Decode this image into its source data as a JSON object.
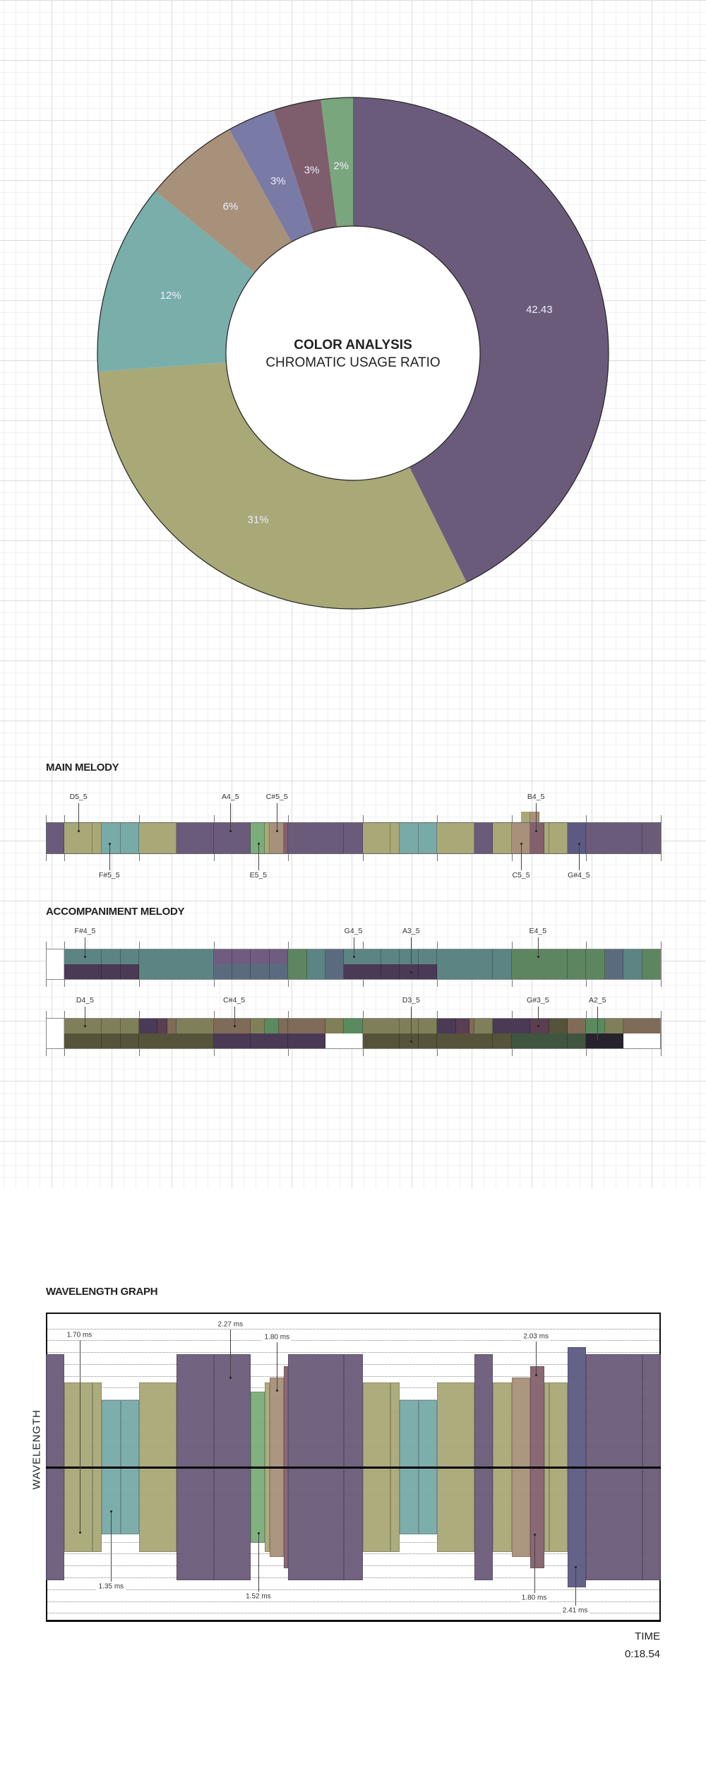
{
  "chart_data": [
    {
      "type": "pie",
      "style": "donut",
      "title": "COLOR ANALYSIS",
      "subtitle": "CHROMATIC USAGE RATIO",
      "slices": [
        {
          "label": "42.43",
          "value": 42.43,
          "color": "#6b5b7b"
        },
        {
          "label": "31%",
          "value": 31,
          "color": "#a9a877"
        },
        {
          "label": "12%",
          "value": 12,
          "color": "#79aeab"
        },
        {
          "label": "6%",
          "value": 6,
          "color": "#a8917a"
        },
        {
          "label": "3%",
          "value": 3,
          "color": "#7a7aa6"
        },
        {
          "label": "3%",
          "value": 3,
          "color": "#7e5d6c"
        },
        {
          "label": "2%",
          "value": 2,
          "color": "#79a67c"
        }
      ]
    },
    {
      "type": "bar",
      "style": "timeline",
      "title": "MAIN MELODY",
      "total_units": 33,
      "ticks": [
        0,
        1,
        5,
        9,
        13,
        17,
        21,
        25,
        29,
        33
      ],
      "palette": {
        "P": "#6b5b7b",
        "O": "#a9a877",
        "T": "#78aaa8",
        "G": "#7bad7b",
        "N": "#a8917a",
        "M": "#84606d",
        "B": "#5c5a82"
      },
      "segments": [
        [
          0,
          1,
          "P"
        ],
        [
          1,
          2.5,
          "O"
        ],
        [
          2.5,
          3,
          "O"
        ],
        [
          3,
          4,
          "T"
        ],
        [
          4,
          5,
          "T"
        ],
        [
          5,
          7,
          "O"
        ],
        [
          7,
          9,
          "P"
        ],
        [
          9,
          11,
          "P"
        ],
        [
          11,
          11.75,
          "G"
        ],
        [
          11.75,
          12,
          "O"
        ],
        [
          12,
          12.75,
          "N"
        ],
        [
          12.75,
          13,
          "M"
        ],
        [
          13,
          16,
          "P"
        ],
        [
          16,
          17,
          "P"
        ],
        [
          17,
          18.5,
          "O"
        ],
        [
          18.5,
          19,
          "O"
        ],
        [
          19,
          20,
          "T"
        ],
        [
          20,
          21,
          "T"
        ],
        [
          21,
          23,
          "O"
        ],
        [
          23,
          24,
          "P"
        ],
        [
          24,
          25,
          "O"
        ],
        [
          25,
          26,
          "N"
        ],
        [
          26,
          26.75,
          "M"
        ],
        [
          26.75,
          27,
          "O"
        ],
        [
          27,
          28,
          "O"
        ],
        [
          28,
          29,
          "B"
        ],
        [
          29,
          32,
          "P"
        ],
        [
          32,
          33,
          "P"
        ]
      ],
      "raised": [
        [
          25.5,
          26,
          "O"
        ],
        [
          26,
          26.5,
          "N"
        ]
      ],
      "labels": [
        {
          "text": "D5_5",
          "at": 1.75,
          "side": "top"
        },
        {
          "text": "F#5_5",
          "at": 3.4,
          "side": "bottom"
        },
        {
          "text": "A4_5",
          "at": 9.9,
          "side": "top"
        },
        {
          "text": "E5_5",
          "at": 11.4,
          "side": "bottom"
        },
        {
          "text": "C#5_5",
          "at": 12.4,
          "side": "top"
        },
        {
          "text": "B4_5",
          "at": 26.3,
          "side": "top"
        },
        {
          "text": "C5_5",
          "at": 25.5,
          "side": "bottom"
        },
        {
          "text": "G#4_5",
          "at": 28.6,
          "side": "bottom"
        }
      ]
    },
    {
      "type": "bar",
      "style": "timeline",
      "title": "ACCOMPANIMENT MELODY",
      "total_units": 33,
      "ticks": [
        0,
        1,
        5,
        9,
        13,
        17,
        21,
        25,
        29,
        33
      ],
      "palette": {
        "W": "#ffffff",
        "tl": "#5b8482",
        "dp": "#4a3a56",
        "pu": "#705c80",
        "sl": "#5b6b7f",
        "gr": "#5c8560",
        "ol": "#7f7f5a",
        "dol": "#555339",
        "br": "#7f6b57",
        "dm": "#5a3f50",
        "grn": "#5a8a5e",
        "dg": "#3f5540",
        "bk": "#27222d"
      },
      "tracks": [
        {
          "top": [
            [
              0,
              1,
              "W"
            ],
            [
              1,
              3,
              "tl"
            ],
            [
              3,
              4,
              "tl"
            ],
            [
              4,
              5,
              "tl"
            ],
            [
              5,
              9,
              "tl"
            ],
            [
              9,
              10,
              "pu"
            ],
            [
              10,
              11,
              "pu"
            ],
            [
              11,
              12,
              "pu"
            ],
            [
              12,
              13,
              "pu"
            ],
            [
              13,
              14,
              "gr"
            ],
            [
              14,
              15,
              "tl"
            ],
            [
              15,
              16,
              "sl"
            ],
            [
              16,
              18,
              "tl"
            ],
            [
              18,
              19,
              "tl"
            ],
            [
              19,
              20,
              "tl"
            ],
            [
              20,
              21,
              "tl"
            ],
            [
              21,
              24,
              "tl"
            ],
            [
              24,
              25,
              "tl"
            ],
            [
              25,
              28,
              "gr"
            ],
            [
              28,
              29,
              "gr"
            ],
            [
              29,
              30,
              "gr"
            ],
            [
              30,
              31,
              "sl"
            ],
            [
              31,
              32,
              "tl"
            ],
            [
              32,
              33,
              "gr"
            ]
          ],
          "bottom": [
            [
              0,
              1,
              "W"
            ],
            [
              1,
              3,
              "dp"
            ],
            [
              3,
              4,
              "dp"
            ],
            [
              4,
              5,
              "dp"
            ],
            [
              5,
              9,
              "tl"
            ],
            [
              9,
              10,
              "sl"
            ],
            [
              10,
              11,
              "sl"
            ],
            [
              11,
              12,
              "sl"
            ],
            [
              12,
              13,
              "sl"
            ],
            [
              13,
              14,
              "gr"
            ],
            [
              14,
              15,
              "tl"
            ],
            [
              15,
              16,
              "sl"
            ],
            [
              16,
              18,
              "dp"
            ],
            [
              18,
              19,
              "dp"
            ],
            [
              19,
              20,
              "dp"
            ],
            [
              20,
              21,
              "dp"
            ],
            [
              21,
              24,
              "tl"
            ],
            [
              24,
              25,
              "tl"
            ],
            [
              25,
              28,
              "gr"
            ],
            [
              28,
              29,
              "gr"
            ],
            [
              29,
              30,
              "gr"
            ],
            [
              30,
              31,
              "sl"
            ],
            [
              31,
              32,
              "tl"
            ],
            [
              32,
              33,
              "gr"
            ]
          ],
          "labels": [
            {
              "text": "F#4_5",
              "at": 2.1
            },
            {
              "text": "G4_5",
              "at": 16.5
            },
            {
              "text": "A3_5",
              "at": 19.6,
              "dot": "bottom"
            },
            {
              "text": "E4_5",
              "at": 26.4
            }
          ]
        },
        {
          "top": [
            [
              0,
              1,
              "W"
            ],
            [
              1,
              3,
              "ol"
            ],
            [
              3,
              4,
              "ol"
            ],
            [
              4,
              5,
              "ol"
            ],
            [
              5,
              6,
              "dp"
            ],
            [
              6,
              6.5,
              "dm"
            ],
            [
              6.5,
              7,
              "br"
            ],
            [
              7,
              9,
              "ol"
            ],
            [
              9,
              11,
              "br"
            ],
            [
              11,
              11.75,
              "ol"
            ],
            [
              11.75,
              12.5,
              "grn"
            ],
            [
              12.5,
              13,
              "br"
            ],
            [
              13,
              15,
              "br"
            ],
            [
              15,
              16,
              "ol"
            ],
            [
              16,
              17,
              "grn"
            ],
            [
              17,
              19,
              "ol"
            ],
            [
              19,
              20,
              "ol"
            ],
            [
              20,
              21,
              "ol"
            ],
            [
              21,
              22,
              "dp"
            ],
            [
              22,
              22.75,
              "dm"
            ],
            [
              22.75,
              23,
              "br"
            ],
            [
              23,
              24,
              "ol"
            ],
            [
              24,
              26,
              "dp"
            ],
            [
              26,
              27,
              "dm"
            ],
            [
              27,
              28,
              "dol"
            ],
            [
              28,
              29,
              "br"
            ],
            [
              29,
              30,
              "grn"
            ],
            [
              30,
              31,
              "ol"
            ],
            [
              31,
              33,
              "br"
            ]
          ],
          "bottom": [
            [
              0,
              1,
              "W"
            ],
            [
              1,
              3,
              "dol"
            ],
            [
              3,
              4,
              "dol"
            ],
            [
              4,
              5,
              "dol"
            ],
            [
              5,
              9,
              "dol"
            ],
            [
              9,
              11,
              "dp"
            ],
            [
              11,
              13,
              "dp"
            ],
            [
              13,
              15,
              "dp"
            ],
            [
              15,
              17,
              "W"
            ],
            [
              17,
              19,
              "dol"
            ],
            [
              19,
              20,
              "dol"
            ],
            [
              20,
              21,
              "dol"
            ],
            [
              21,
              24,
              "dol"
            ],
            [
              24,
              25,
              "dol"
            ],
            [
              25,
              28,
              "dg"
            ],
            [
              28,
              29,
              "dg"
            ],
            [
              29,
              31,
              "bk"
            ],
            [
              31,
              33,
              "W"
            ]
          ],
          "labels": [
            {
              "text": "D4_5",
              "at": 2.1
            },
            {
              "text": "C#4_5",
              "at": 10.1
            },
            {
              "text": "D3_5",
              "at": 19.6,
              "dot": "bottom"
            },
            {
              "text": "G#3_5",
              "at": 26.4
            },
            {
              "text": "A2_5",
              "at": 29.6,
              "dot": "bottom"
            }
          ]
        }
      ]
    },
    {
      "type": "bar",
      "style": "symmetric-wave",
      "title": "WAVELENGTH GRAPH",
      "ylabel": "WAVELENGTH",
      "xlabel": "TIME",
      "time_readout": "0:18.54",
      "ylim_ms": [
        -3.1,
        3.1
      ],
      "amplitude_ms": {
        "P": 2.27,
        "O": 1.7,
        "T": 1.35,
        "G": 1.52,
        "N": 1.8,
        "M": 2.03,
        "B": 2.41
      },
      "annotations": [
        {
          "text": "1.70 ms",
          "at": 1.8,
          "level": 2.64,
          "dot": -1.3
        },
        {
          "text": "2.27 ms",
          "at": 9.9,
          "level": 2.86,
          "dot": 1.8
        },
        {
          "text": "1.80 ms",
          "at": 12.4,
          "level": 2.61,
          "dot": 1.55
        },
        {
          "text": "2.03 ms",
          "at": 26.3,
          "level": 2.62,
          "dot": 1.85
        },
        {
          "text": "1.35 ms",
          "at": 3.5,
          "level": -2.39,
          "dot": -0.88
        },
        {
          "text": "1.52 ms",
          "at": 11.4,
          "level": -2.59,
          "dot": -1.32
        },
        {
          "text": "1.80 ms",
          "at": 26.2,
          "level": -2.62,
          "dot": -1.35
        },
        {
          "text": "2.41 ms",
          "at": 28.4,
          "level": -2.87,
          "dot": -2.0
        }
      ]
    }
  ]
}
